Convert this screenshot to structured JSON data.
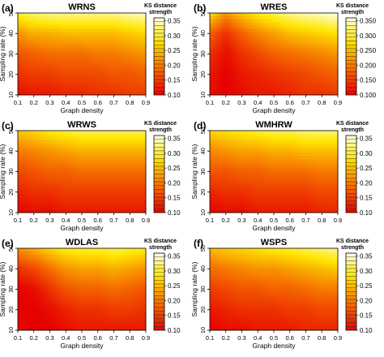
{
  "chart_data": [
    {
      "type": "heatmap",
      "panel_label": "(a)",
      "title": "WRNS",
      "xlabel": "Graph density",
      "ylabel": "Sampling rate (%)",
      "x": [
        0.1,
        0.2,
        0.3,
        0.4,
        0.5,
        0.6,
        0.7,
        0.8,
        0.9
      ],
      "y": [
        10,
        20,
        30,
        40,
        50
      ],
      "xticks": [
        "0.1",
        "0.2",
        "0.3",
        "0.4",
        "0.5",
        "0.6",
        "0.7",
        "0.8",
        "0.9"
      ],
      "yticks": [
        "10",
        "20",
        "30",
        "40",
        "50"
      ],
      "z": [
        [
          0.3,
          0.32,
          0.33,
          0.33,
          0.33,
          0.33,
          0.33,
          0.34,
          0.35
        ],
        [
          0.22,
          0.24,
          0.24,
          0.25,
          0.25,
          0.25,
          0.25,
          0.26,
          0.27
        ],
        [
          0.17,
          0.18,
          0.19,
          0.19,
          0.19,
          0.2,
          0.2,
          0.21,
          0.22
        ],
        [
          0.14,
          0.15,
          0.15,
          0.16,
          0.16,
          0.16,
          0.17,
          0.17,
          0.18
        ],
        [
          0.11,
          0.12,
          0.12,
          0.13,
          0.13,
          0.14,
          0.14,
          0.15,
          0.15
        ]
      ],
      "colorbar": {
        "title": "KS distance strength",
        "ticks": [
          "0.10",
          "0.15",
          "0.20",
          "0.25",
          "0.30",
          "0.35"
        ],
        "range": [
          0.1,
          0.36
        ]
      }
    },
    {
      "type": "heatmap",
      "panel_label": "(b)",
      "title": "WRES",
      "xlabel": "Graph density",
      "ylabel": "Sampling rate (%)",
      "x": [
        0.1,
        0.2,
        0.3,
        0.4,
        0.5,
        0.6,
        0.7,
        0.8,
        0.9
      ],
      "y": [
        10,
        20,
        30,
        40,
        50
      ],
      "xticks": [
        "0.1",
        "0.2",
        "0.3",
        "0.4",
        "0.5",
        "0.6",
        "0.7",
        "0.8",
        "0.9"
      ],
      "yticks": [
        "10",
        "20",
        "30",
        "40",
        "50"
      ],
      "z": [
        [
          0.28,
          0.22,
          0.26,
          0.29,
          0.31,
          0.33,
          0.34,
          0.35,
          0.36
        ],
        [
          0.18,
          0.14,
          0.18,
          0.21,
          0.23,
          0.25,
          0.26,
          0.27,
          0.28
        ],
        [
          0.14,
          0.11,
          0.14,
          0.16,
          0.18,
          0.19,
          0.2,
          0.21,
          0.22
        ],
        [
          0.12,
          0.1,
          0.12,
          0.13,
          0.14,
          0.15,
          0.16,
          0.17,
          0.18
        ],
        [
          0.11,
          0.1,
          0.11,
          0.12,
          0.12,
          0.13,
          0.14,
          0.14,
          0.15
        ]
      ],
      "colorbar": {
        "title": "KS distance strength",
        "ticks": [
          "0.100",
          "0.150",
          "0.200",
          "0.250",
          "0.300",
          "0.350"
        ],
        "range": [
          0.1,
          0.36
        ]
      }
    },
    {
      "type": "heatmap",
      "panel_label": "(c)",
      "title": "WRWS",
      "xlabel": "Graph density",
      "ylabel": "Sampling rate (%)",
      "x": [
        0.1,
        0.2,
        0.3,
        0.4,
        0.5,
        0.6,
        0.7,
        0.8,
        0.9
      ],
      "y": [
        10,
        20,
        30,
        40,
        50
      ],
      "xticks": [
        "0.1",
        "0.2",
        "0.3",
        "0.4",
        "0.5",
        "0.6",
        "0.7",
        "0.8",
        "0.9"
      ],
      "yticks": [
        "10",
        "20",
        "30",
        "40",
        "50"
      ],
      "z": [
        [
          0.26,
          0.27,
          0.29,
          0.3,
          0.31,
          0.31,
          0.31,
          0.31,
          0.31
        ],
        [
          0.2,
          0.21,
          0.22,
          0.23,
          0.24,
          0.24,
          0.24,
          0.24,
          0.24
        ],
        [
          0.16,
          0.17,
          0.18,
          0.18,
          0.19,
          0.19,
          0.19,
          0.19,
          0.19
        ],
        [
          0.13,
          0.14,
          0.14,
          0.15,
          0.15,
          0.15,
          0.15,
          0.15,
          0.15
        ],
        [
          0.1,
          0.11,
          0.11,
          0.12,
          0.12,
          0.12,
          0.12,
          0.12,
          0.12
        ]
      ],
      "colorbar": {
        "title": "KS distance strength",
        "ticks": [
          "0.10",
          "0.15",
          "0.20",
          "0.25",
          "0.30",
          "0.35"
        ],
        "range": [
          0.1,
          0.36
        ]
      }
    },
    {
      "type": "heatmap",
      "panel_label": "(d)",
      "title": "WMHRW",
      "xlabel": "Graph density",
      "ylabel": "Sampling rate (%)",
      "x": [
        0.1,
        0.2,
        0.3,
        0.4,
        0.5,
        0.6,
        0.7,
        0.8,
        0.9
      ],
      "y": [
        10,
        20,
        30,
        40,
        50
      ],
      "xticks": [
        "0.1",
        "0.2",
        "0.3",
        "0.4",
        "0.5",
        "0.6",
        "0.7",
        "0.8",
        "0.9"
      ],
      "yticks": [
        "10",
        "20",
        "30",
        "40",
        "50"
      ],
      "z": [
        [
          0.27,
          0.28,
          0.29,
          0.3,
          0.31,
          0.31,
          0.32,
          0.32,
          0.32
        ],
        [
          0.21,
          0.22,
          0.23,
          0.23,
          0.24,
          0.24,
          0.25,
          0.25,
          0.25
        ],
        [
          0.17,
          0.17,
          0.18,
          0.18,
          0.19,
          0.19,
          0.19,
          0.2,
          0.2
        ],
        [
          0.13,
          0.14,
          0.14,
          0.15,
          0.15,
          0.15,
          0.15,
          0.16,
          0.16
        ],
        [
          0.1,
          0.11,
          0.11,
          0.12,
          0.12,
          0.12,
          0.12,
          0.13,
          0.13
        ]
      ],
      "colorbar": {
        "title": "KS distance strength",
        "ticks": [
          "0.10",
          "0.15",
          "0.20",
          "0.25",
          "0.30",
          "0.35"
        ],
        "range": [
          0.1,
          0.36
        ]
      }
    },
    {
      "type": "heatmap",
      "panel_label": "(e)",
      "title": "WDLAS",
      "xlabel": "Graph density",
      "ylabel": "Sampling rate (%)",
      "x": [
        0.1,
        0.2,
        0.3,
        0.4,
        0.5,
        0.6,
        0.7,
        0.8,
        0.9
      ],
      "y": [
        10,
        20,
        30,
        40,
        50
      ],
      "xticks": [
        "0.1",
        "0.2",
        "0.3",
        "0.4",
        "0.5",
        "0.6",
        "0.7",
        "0.8",
        "0.9"
      ],
      "yticks": [
        "10",
        "20",
        "30",
        "40",
        "50"
      ],
      "z": [
        [
          0.22,
          0.24,
          0.27,
          0.29,
          0.3,
          0.3,
          0.31,
          0.3,
          0.29
        ],
        [
          0.14,
          0.16,
          0.19,
          0.22,
          0.23,
          0.23,
          0.24,
          0.23,
          0.22
        ],
        [
          0.1,
          0.11,
          0.14,
          0.17,
          0.18,
          0.18,
          0.19,
          0.18,
          0.17
        ],
        [
          0.1,
          0.1,
          0.11,
          0.13,
          0.14,
          0.14,
          0.15,
          0.15,
          0.14
        ],
        [
          0.11,
          0.1,
          0.1,
          0.11,
          0.12,
          0.12,
          0.12,
          0.12,
          0.12
        ]
      ],
      "colorbar": {
        "title": "KS distance strength",
        "ticks": [
          "0.10",
          "0.15",
          "0.20",
          "0.25",
          "0.30",
          "0.35"
        ],
        "range": [
          0.1,
          0.36
        ]
      }
    },
    {
      "type": "heatmap",
      "panel_label": "(f)",
      "title": "WSPS",
      "xlabel": "Graph density",
      "ylabel": "Sampling rate (%)",
      "x": [
        0.1,
        0.2,
        0.3,
        0.4,
        0.5,
        0.6,
        0.7,
        0.8,
        0.9
      ],
      "y": [
        10,
        20,
        30,
        40,
        50
      ],
      "xticks": [
        "0.1",
        "0.2",
        "0.3",
        "0.4",
        "0.5",
        "0.6",
        "0.7",
        "0.8",
        "0.9"
      ],
      "yticks": [
        "10",
        "20",
        "30",
        "40",
        "50"
      ],
      "z": [
        [
          0.25,
          0.26,
          0.27,
          0.28,
          0.29,
          0.3,
          0.31,
          0.32,
          0.33
        ],
        [
          0.19,
          0.2,
          0.21,
          0.22,
          0.22,
          0.23,
          0.24,
          0.25,
          0.26
        ],
        [
          0.15,
          0.16,
          0.17,
          0.17,
          0.18,
          0.18,
          0.19,
          0.2,
          0.2
        ],
        [
          0.12,
          0.13,
          0.14,
          0.14,
          0.14,
          0.15,
          0.15,
          0.16,
          0.16
        ],
        [
          0.1,
          0.11,
          0.11,
          0.12,
          0.12,
          0.12,
          0.13,
          0.13,
          0.13
        ]
      ],
      "colorbar": {
        "title": "KS distance strength",
        "ticks": [
          "0.10",
          "0.15",
          "0.20",
          "0.25",
          "0.30",
          "0.35"
        ],
        "range": [
          0.1,
          0.36
        ]
      }
    }
  ]
}
